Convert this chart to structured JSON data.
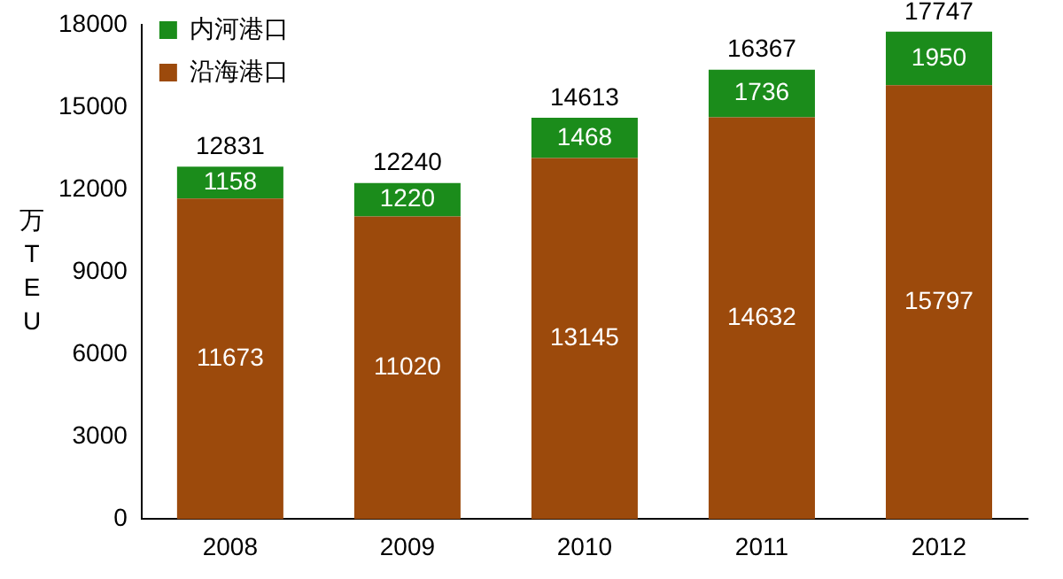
{
  "chart_data": {
    "type": "bar",
    "stacked": true,
    "ylabel": "万TEU",
    "categories": [
      "2008",
      "2009",
      "2010",
      "2011",
      "2012"
    ],
    "series": [
      {
        "name": "沿海港口",
        "color": "#9c4a0c",
        "values": [
          11673,
          11020,
          13145,
          14632,
          15797
        ]
      },
      {
        "name": "内河港口",
        "color": "#1b8c1b",
        "values": [
          1158,
          1220,
          1468,
          1736,
          1950
        ]
      }
    ],
    "totals": [
      "12831",
      "12240",
      "14613",
      "16367",
      "17747"
    ],
    "data_labels": true,
    "ylim": [
      0,
      18000
    ],
    "yticks": [
      0,
      3000,
      6000,
      9000,
      12000,
      15000,
      18000
    ],
    "grid": false,
    "legend": "top left"
  }
}
